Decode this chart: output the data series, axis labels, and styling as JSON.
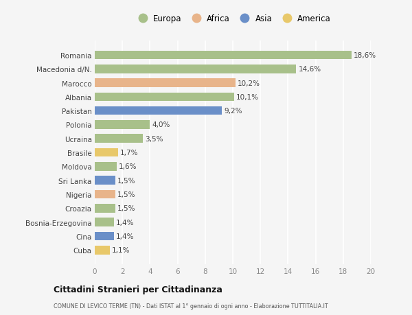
{
  "countries": [
    "Romania",
    "Macedonia d/N.",
    "Marocco",
    "Albania",
    "Pakistan",
    "Polonia",
    "Ucraina",
    "Brasile",
    "Moldova",
    "Sri Lanka",
    "Nigeria",
    "Croazia",
    "Bosnia-Erzegovina",
    "Cina",
    "Cuba"
  ],
  "values": [
    18.6,
    14.6,
    10.2,
    10.1,
    9.2,
    4.0,
    3.5,
    1.7,
    1.6,
    1.5,
    1.5,
    1.5,
    1.4,
    1.4,
    1.1
  ],
  "labels": [
    "18,6%",
    "14,6%",
    "10,2%",
    "10,1%",
    "9,2%",
    "4,0%",
    "3,5%",
    "1,7%",
    "1,6%",
    "1,5%",
    "1,5%",
    "1,5%",
    "1,4%",
    "1,4%",
    "1,1%"
  ],
  "continents": [
    "Europa",
    "Europa",
    "Africa",
    "Europa",
    "Asia",
    "Europa",
    "Europa",
    "America",
    "Europa",
    "Asia",
    "Africa",
    "Europa",
    "Europa",
    "Asia",
    "America"
  ],
  "colors": {
    "Europa": "#a8c08a",
    "Africa": "#e8b48a",
    "Asia": "#6a8fc8",
    "America": "#e8c86a"
  },
  "legend_order": [
    "Europa",
    "Africa",
    "Asia",
    "America"
  ],
  "bg_color": "#f5f5f5",
  "grid_color": "#e0e0e0",
  "xlim": [
    0,
    20
  ],
  "xticks": [
    0,
    2,
    4,
    6,
    8,
    10,
    12,
    14,
    16,
    18,
    20
  ],
  "title": "Cittadini Stranieri per Cittadinanza",
  "subtitle": "COMUNE DI LEVICO TERME (TN) - Dati ISTAT al 1° gennaio di ogni anno - Elaborazione TUTTITALIA.IT"
}
